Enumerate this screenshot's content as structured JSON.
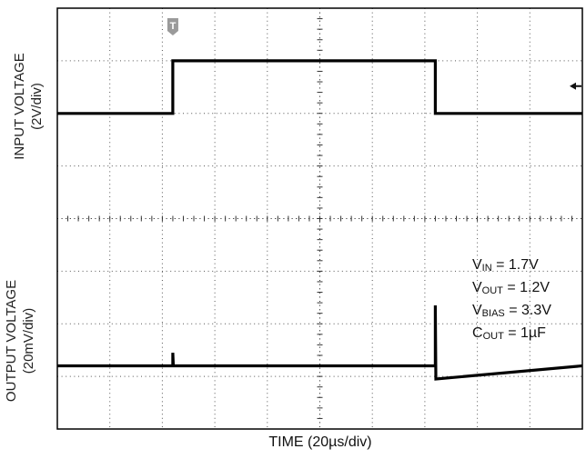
{
  "chart_data": [
    {
      "type": "line",
      "title": "",
      "xlabel": "TIME (20µs/div)",
      "ylabel": "INPUT VOLTAGE (2V/div)",
      "x_divisions": 10,
      "y_divisions": 4,
      "series": [
        {
          "x_div": [
            0,
            2.2,
            2.2,
            7.2,
            7.2,
            10
          ],
          "y_div": [
            2,
            2,
            3,
            3,
            2,
            2
          ]
        }
      ],
      "trigger_marker": "T",
      "level_marker": "arrow-left"
    },
    {
      "type": "line",
      "title": "",
      "xlabel": "TIME (20µs/div)",
      "ylabel": "OUTPUT VOLTAGE (20mV/div)",
      "x_divisions": 10,
      "y_divisions": 4,
      "series": [
        {
          "x_div": [
            0,
            2.2,
            2.2,
            2.21,
            7.2,
            7.2,
            7.21,
            10
          ],
          "y_div": [
            1.2,
            1.2,
            1.45,
            1.2,
            1.2,
            2.35,
            0.95,
            1.2
          ]
        }
      ]
    }
  ],
  "labels": {
    "y_top_line1": "INPUT VOLTAGE",
    "y_top_line2": "(2V/div)",
    "y_bottom_line1": "OUTPUT VOLTAGE",
    "y_bottom_line2": "(20mV/div)",
    "x": "TIME (20µs/div)"
  },
  "conditions": [
    {
      "symbol": "V",
      "sub": "IN",
      "value": " = 1.7V"
    },
    {
      "symbol": "V",
      "sub": "OUT",
      "value": " = 1.2V"
    },
    {
      "symbol": "V",
      "sub": "BIAS",
      "value": " = 3.3V"
    },
    {
      "symbol": "C",
      "sub": "OUT",
      "value": " = 1µF"
    }
  ],
  "colors": {
    "trace": "#000000",
    "grid": "#555555",
    "frame": "#000000"
  }
}
